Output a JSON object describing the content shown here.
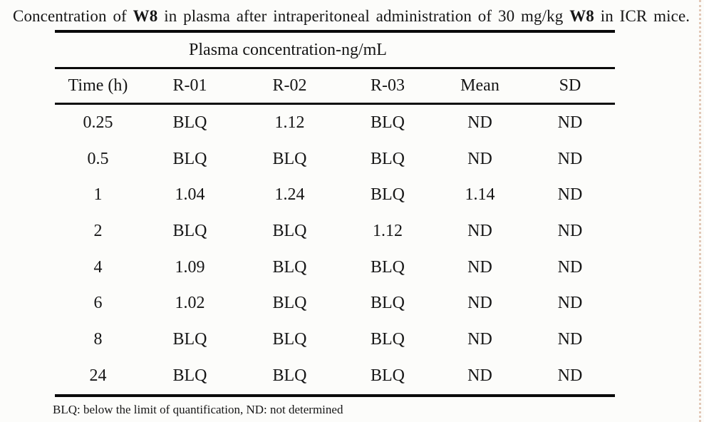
{
  "title": {
    "part1": "Concentration of ",
    "bold1": "W8",
    "part2": " in plasma after intraperitoneal administration of 30 mg/kg ",
    "bold2": "W8",
    "part3": " in ICR mice."
  },
  "table": {
    "group_header": "Plasma concentration-ng/mL",
    "columns": [
      "Time (h)",
      "R-01",
      "R-02",
      "R-03",
      "Mean",
      "SD"
    ],
    "rows": [
      [
        "0.25",
        "BLQ",
        "1.12",
        "BLQ",
        "ND",
        "ND"
      ],
      [
        "0.5",
        "BLQ",
        "BLQ",
        "BLQ",
        "ND",
        "ND"
      ],
      [
        "1",
        "1.04",
        "1.24",
        "BLQ",
        "1.14",
        "ND"
      ],
      [
        "2",
        "BLQ",
        "BLQ",
        "1.12",
        "ND",
        "ND"
      ],
      [
        "4",
        "1.09",
        "BLQ",
        "BLQ",
        "ND",
        "ND"
      ],
      [
        "6",
        "1.02",
        "BLQ",
        "BLQ",
        "ND",
        "ND"
      ],
      [
        "8",
        "BLQ",
        "BLQ",
        "BLQ",
        "ND",
        "ND"
      ],
      [
        "24",
        "BLQ",
        "BLQ",
        "BLQ",
        "ND",
        "ND"
      ]
    ],
    "footnote": "BLQ: below the limit of quantification, ND: not determined"
  },
  "colors": {
    "text": "#161616",
    "rule": "#0a0a0a",
    "background": "#fcfcfa",
    "edge_artifact": "#c89473"
  }
}
